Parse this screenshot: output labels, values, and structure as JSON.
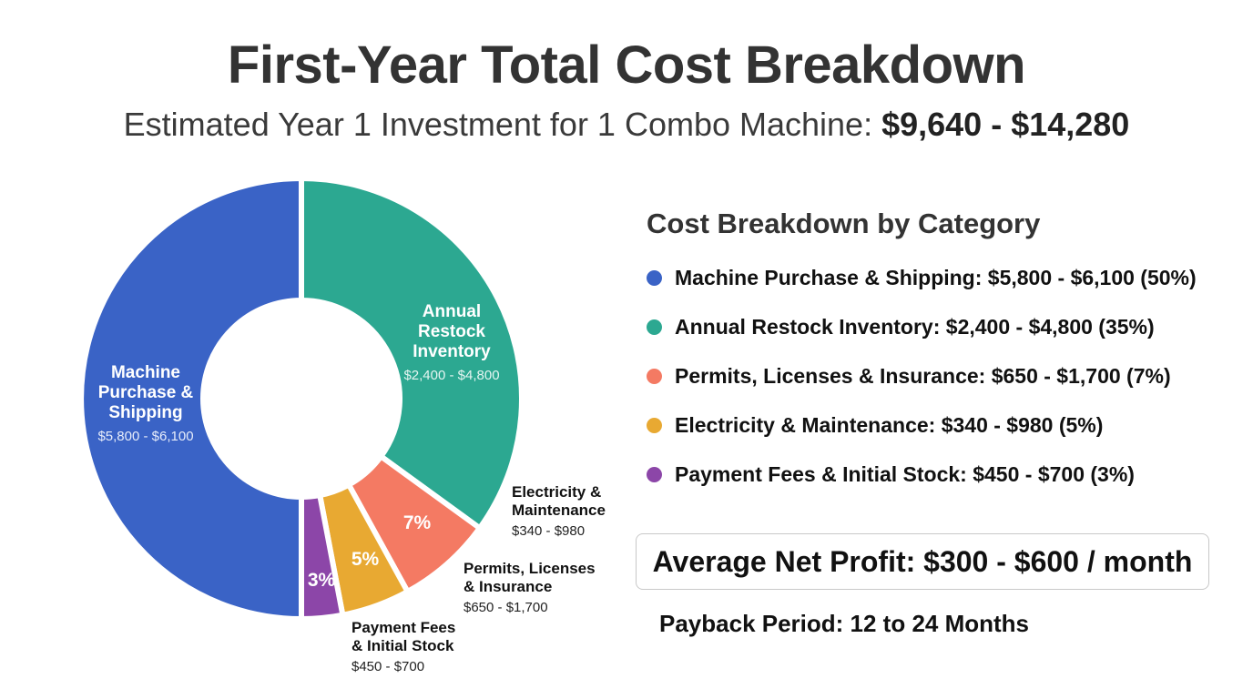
{
  "header": {
    "title": "First-Year Total Cost Breakdown",
    "subtitle_prefix": "Estimated Year 1 Investment for 1 Combo Machine: ",
    "subtitle_amount": "$9,640 - $14,280"
  },
  "chart_data": {
    "type": "pie",
    "style": "donut",
    "title": "",
    "slices": [
      {
        "name": "Machine Purchase & Shipping",
        "label_lines": [
          "Machine",
          "Purchase &",
          "Shipping"
        ],
        "range": "$5,800 - $6,100",
        "value": 50,
        "color": "#3a63c6",
        "pct_label": ""
      },
      {
        "name": "Annual Restock Inventory",
        "label_lines": [
          "Annual",
          "Restock",
          "Inventory"
        ],
        "range": "$2,400 - $4,800",
        "value": 35,
        "color": "#2ca891",
        "pct_label": ""
      },
      {
        "name": "Permits, Licenses & Insurance",
        "label_lines": [
          "Permits, Licenses",
          "& Insurance"
        ],
        "range": "$650 - $1,700",
        "value": 7,
        "color": "#f47a63",
        "pct_label": "7%"
      },
      {
        "name": "Electricity & Maintenance",
        "label_lines": [
          "Electricity &",
          "Maintenance"
        ],
        "range": "$340 - $980",
        "value": 5,
        "color": "#e8a932",
        "pct_label": "5%"
      },
      {
        "name": "Payment Fees & Initial Stock",
        "label_lines": [
          "Payment Fees",
          "& Initial Stock"
        ],
        "range": "$450 - $700",
        "value": 3,
        "color": "#8c46a8",
        "pct_label": "3%"
      }
    ]
  },
  "legend": {
    "title": "Cost Breakdown by Category",
    "items": [
      {
        "text": "Machine Purchase & Shipping: $5,800 - $6,100 (50%)",
        "color": "#3a63c6"
      },
      {
        "text": "Annual Restock Inventory: $2,400 - $4,800 (35%)",
        "color": "#2ca891"
      },
      {
        "text": "Permits, Licenses & Insurance: $650 - $1,700 (7%)",
        "color": "#f47a63"
      },
      {
        "text": "Electricity & Maintenance: $340 - $980 (5%)",
        "color": "#e8a932"
      },
      {
        "text": "Payment Fees & Initial Stock: $450 - $700 (3%)",
        "color": "#8c46a8"
      }
    ]
  },
  "summary": {
    "profit": "Average Net Profit: $300 - $600 / month",
    "payback": "Payback Period: 12 to 24 Months"
  }
}
